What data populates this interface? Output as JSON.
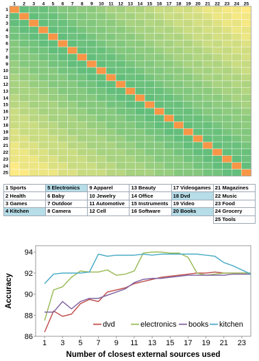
{
  "chart_data": [
    {
      "type": "heatmap",
      "rows": [
        "1",
        "2",
        "3",
        "4",
        "5",
        "6",
        "7",
        "8",
        "9",
        "10",
        "11",
        "12",
        "13",
        "14",
        "15",
        "16",
        "17",
        "18",
        "19",
        "20",
        "21",
        "22",
        "23",
        "24",
        "25"
      ],
      "columns": [
        "1",
        "2",
        "3",
        "4",
        "5",
        "6",
        "7",
        "8",
        "9",
        "10",
        "11",
        "12",
        "13",
        "14",
        "15",
        "16",
        "17",
        "18",
        "19",
        "20",
        "21",
        "22",
        "23",
        "24",
        "25"
      ],
      "value_range": [
        0,
        25
      ],
      "colorscale": [
        "#f8696b",
        "#ffeb84",
        "#63be7b"
      ],
      "highlight_color": "#f79646",
      "cell_values_note_free": true
    },
    {
      "type": "table",
      "categories": [
        [
          {
            "id": "1",
            "name": "Sports"
          },
          {
            "id": "5",
            "name": "Electronics",
            "hl": true
          },
          {
            "id": "9",
            "name": "Apparel"
          },
          {
            "id": "13",
            "name": "Beauty"
          },
          {
            "id": "17",
            "name": "Videogames"
          },
          {
            "id": "21",
            "name": "Magazines"
          }
        ],
        [
          {
            "id": "2",
            "name": "Health"
          },
          {
            "id": "6",
            "name": "Baby"
          },
          {
            "id": "10",
            "name": "Jewelry"
          },
          {
            "id": "14",
            "name": "Office"
          },
          {
            "id": "18",
            "name": "Dvd",
            "hl": true
          },
          {
            "id": "22",
            "name": "Music"
          }
        ],
        [
          {
            "id": "3",
            "name": "Games"
          },
          {
            "id": "7",
            "name": "Outdoor"
          },
          {
            "id": "11",
            "name": "Automotive"
          },
          {
            "id": "15",
            "name": "Instruments"
          },
          {
            "id": "19",
            "name": "Video"
          },
          {
            "id": "23",
            "name": "Food"
          }
        ],
        [
          {
            "id": "4",
            "name": "Kitchen",
            "hl": true
          },
          {
            "id": "8",
            "name": "Camera"
          },
          {
            "id": "12",
            "name": "Cell"
          },
          {
            "id": "16",
            "name": "Software"
          },
          {
            "id": "20",
            "name": "Books",
            "hl": true
          },
          {
            "id": "24",
            "name": "Grocery"
          }
        ],
        [
          null,
          null,
          null,
          null,
          null,
          {
            "id": "25",
            "name": "Tools"
          }
        ]
      ]
    },
    {
      "type": "line",
      "xlabel": "Number of closest external sources used",
      "ylabel": "Accuracy",
      "xlim": [
        0,
        24
      ],
      "ylim": [
        86,
        94.6
      ],
      "xticks": [
        1,
        3,
        5,
        7,
        9,
        11,
        13,
        15,
        17,
        19,
        21,
        23
      ],
      "yticks": [
        86,
        88,
        90,
        92,
        94
      ],
      "x": [
        1,
        2,
        3,
        4,
        5,
        6,
        7,
        8,
        9,
        10,
        11,
        12,
        13,
        14,
        15,
        16,
        17,
        18,
        19,
        20,
        21,
        22,
        23,
        24
      ],
      "series": [
        {
          "name": "dvd",
          "color": "#c0504d",
          "values": [
            86.4,
            88.4,
            87.9,
            88.1,
            89.1,
            89.5,
            89.3,
            90.2,
            90.4,
            90.6,
            91.0,
            91.2,
            91.4,
            91.6,
            91.7,
            91.8,
            91.9,
            92.0,
            92.0,
            92.1,
            92.0,
            92.0,
            92.0,
            92.0
          ]
        },
        {
          "name": "electronics",
          "color": "#9bbb59",
          "values": [
            87.5,
            90.4,
            90.7,
            91.6,
            92.2,
            92.1,
            92.1,
            92.3,
            91.8,
            91.9,
            92.2,
            93.9,
            94.0,
            94.0,
            93.9,
            93.9,
            93.5,
            92.0,
            91.8,
            91.9,
            92.0,
            92.0,
            92.0,
            92.0
          ]
        },
        {
          "name": "books",
          "color": "#8064a2",
          "values": [
            88.3,
            88.3,
            89.3,
            88.6,
            89.3,
            89.6,
            89.6,
            89.9,
            90.2,
            90.5,
            91.1,
            91.4,
            91.5,
            91.5,
            91.6,
            91.7,
            91.8,
            91.8,
            91.8,
            91.8,
            91.8,
            91.9,
            91.9,
            91.9
          ]
        },
        {
          "name": "kitchen",
          "color": "#4bacc6",
          "values": [
            91.0,
            91.9,
            92.0,
            92.0,
            92.0,
            92.1,
            93.8,
            93.6,
            93.7,
            93.7,
            93.7,
            93.8,
            93.7,
            93.8,
            93.8,
            93.8,
            93.8,
            93.8,
            93.7,
            93.6,
            93.0,
            92.7,
            92.3,
            91.9
          ]
        }
      ],
      "legend_position": "bottom-right",
      "grid": false
    }
  ]
}
